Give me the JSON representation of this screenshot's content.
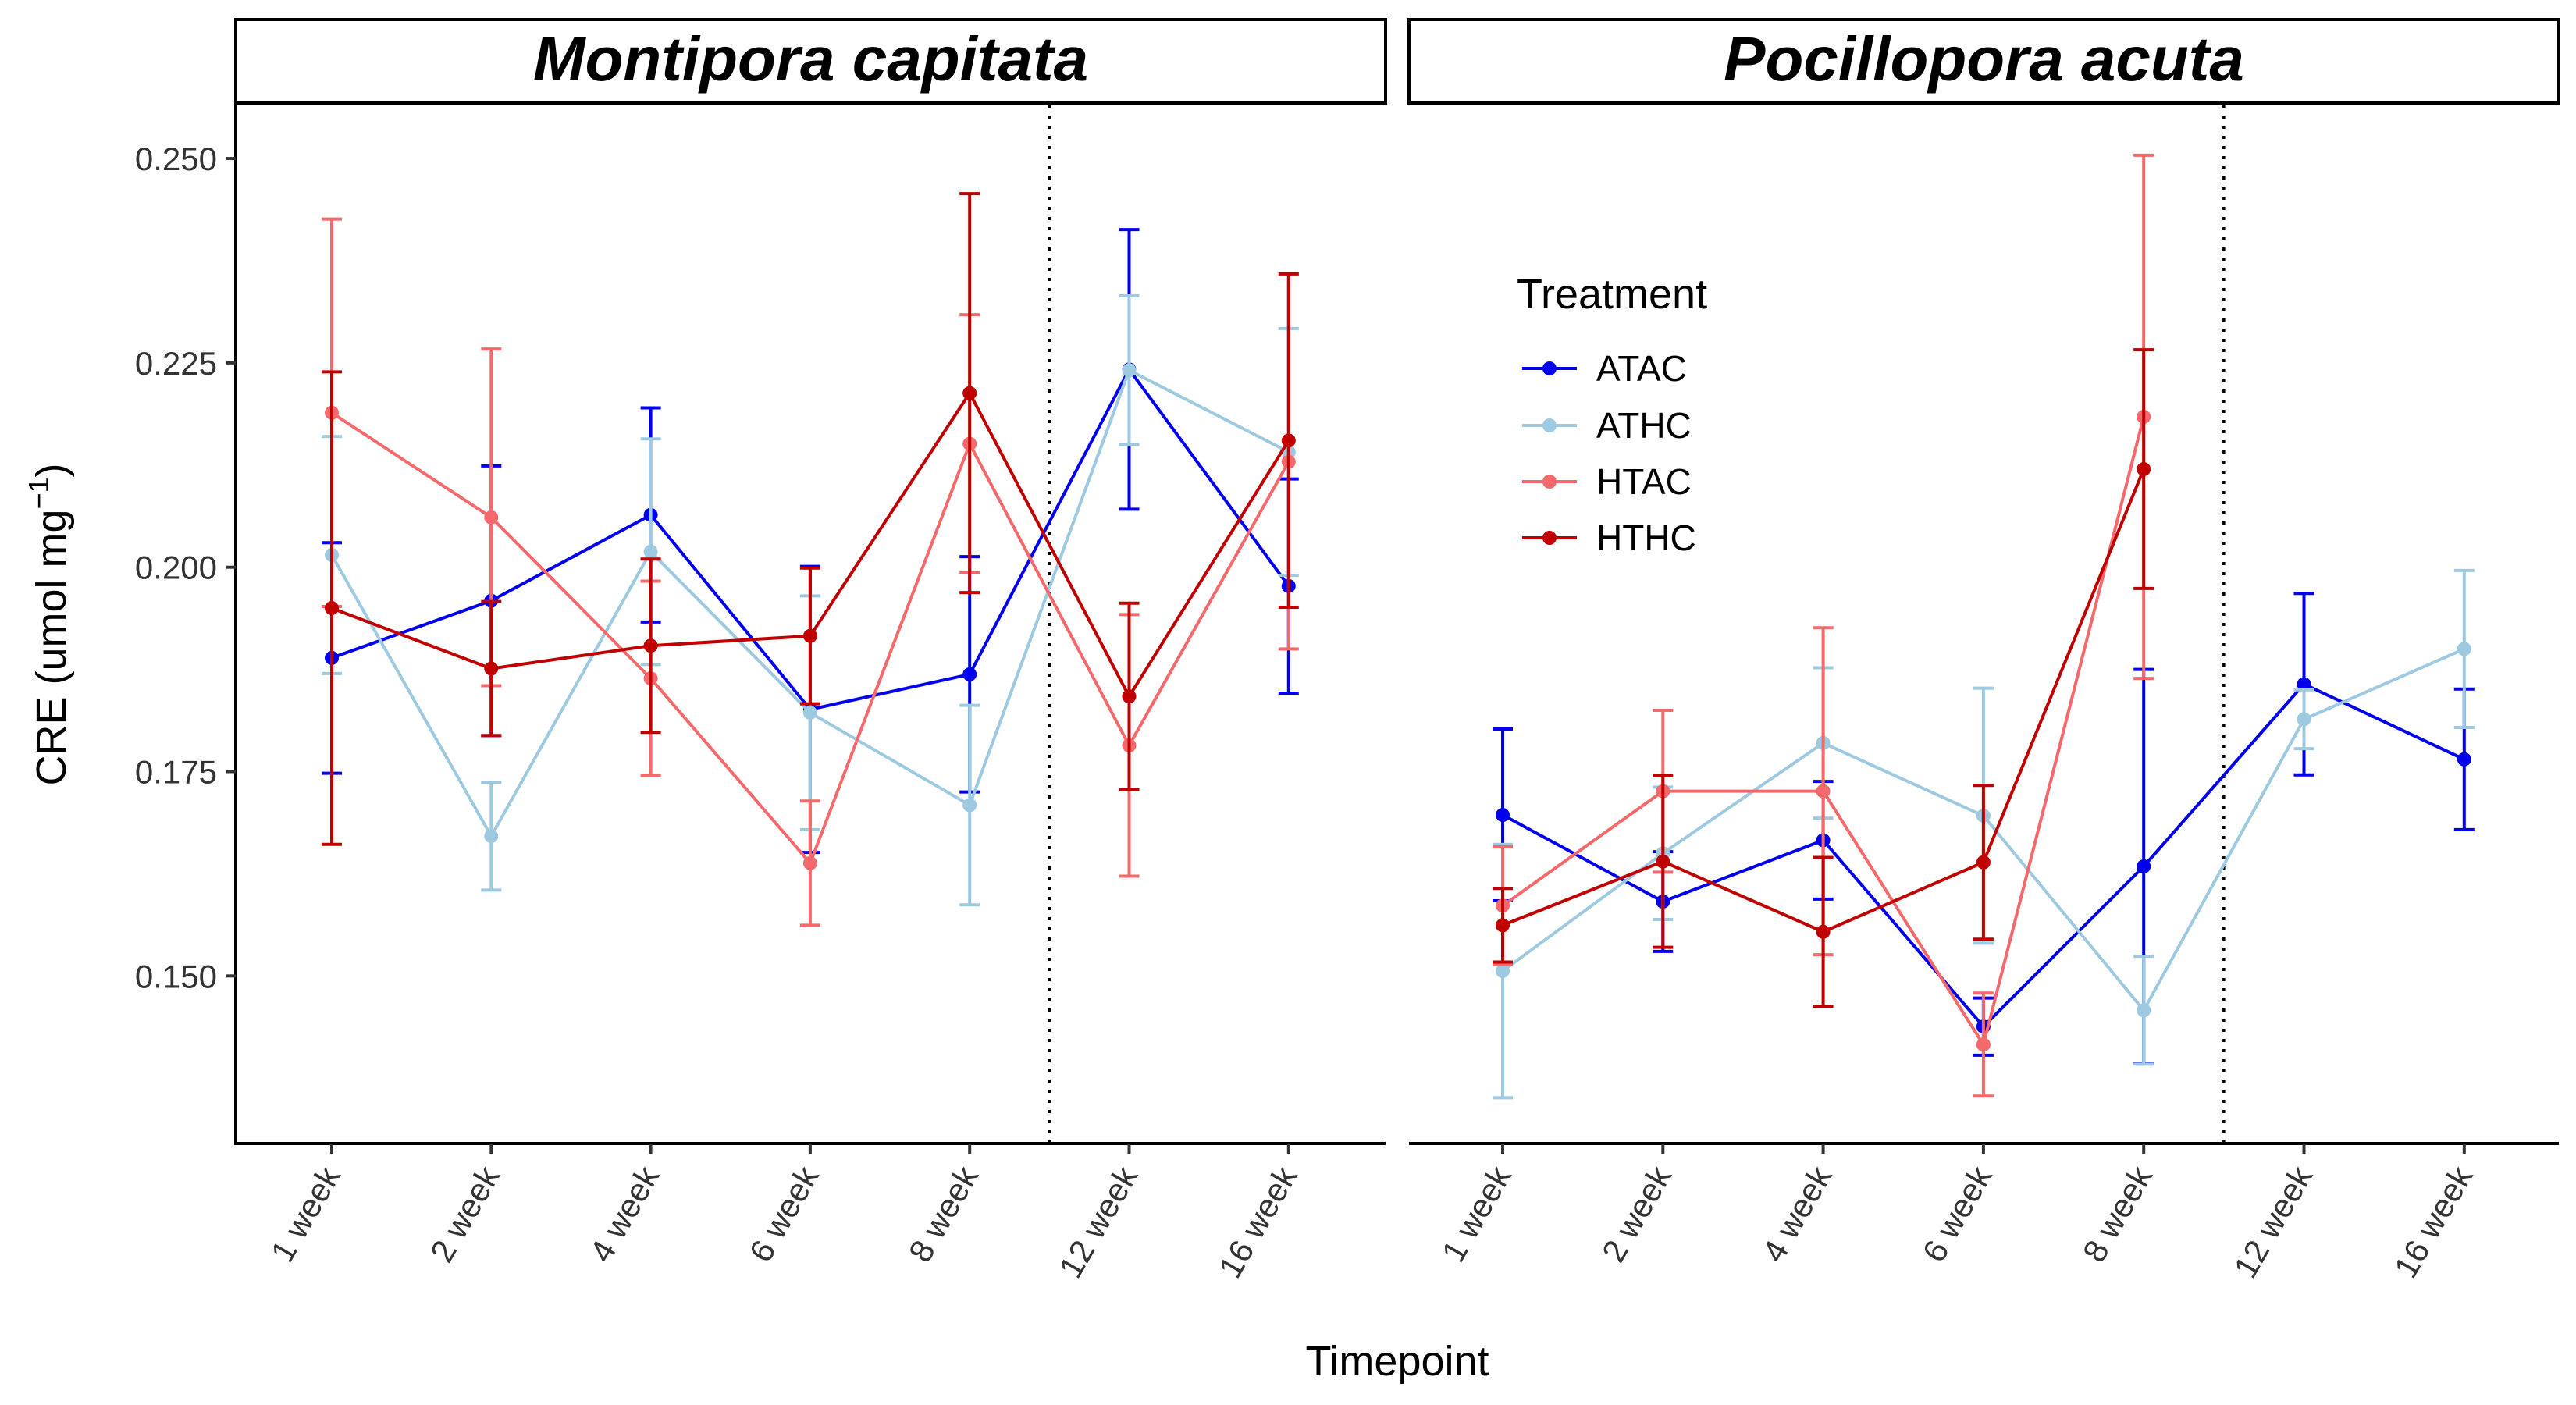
{
  "chart_data": {
    "type": "line",
    "panels": [
      {
        "title": "Montipora capitata",
        "series": [
          {
            "name": "ATAC",
            "values": [
              0.1889,
              0.1959,
              0.2064,
              0.1826,
              0.1869,
              0.2242,
              0.1977
            ],
            "errors": [
              0.0141,
              0.0165,
              0.0131,
              0.0175,
              0.0144,
              0.0171,
              0.0131
            ]
          },
          {
            "name": "ATHC",
            "values": [
              0.2015,
              0.1671,
              0.2019,
              0.1822,
              0.1709,
              0.2241,
              0.2141
            ],
            "errors": [
              0.0145,
              0.0066,
              0.0138,
              0.0143,
              0.0122,
              0.0091,
              0.0151
            ]
          },
          {
            "name": "HTAC",
            "values": [
              0.2189,
              0.2061,
              0.1864,
              0.1638,
              0.2151,
              0.1782,
              0.2129
            ],
            "errors": [
              0.0237,
              0.0206,
              0.0119,
              0.0076,
              0.0158,
              0.016,
              0.0229
            ]
          },
          {
            "name": "HTHC",
            "values": [
              0.195,
              0.1876,
              0.1904,
              0.1916,
              0.2213,
              0.1842,
              0.2155
            ],
            "errors": [
              0.0289,
              0.0082,
              0.0106,
              0.0083,
              0.0244,
              0.0114,
              0.0204
            ]
          }
        ]
      },
      {
        "title": "Pocillopora acuta",
        "series": [
          {
            "name": "ATAC",
            "values": [
              0.1697,
              0.1591,
              0.1666,
              0.1438,
              0.1634,
              0.1857,
              0.1765
            ],
            "errors": [
              0.0105,
              0.0061,
              0.0072,
              0.0035,
              0.0241,
              0.0111,
              0.0086
            ]
          },
          {
            "name": "ATHC",
            "values": [
              0.1506,
              0.165,
              0.1785,
              0.1696,
              0.1458,
              0.1814,
              0.19
            ],
            "errors": [
              0.0155,
              0.0081,
              0.0092,
              0.0156,
              0.0066,
              0.0036,
              0.0096
            ]
          },
          {
            "name": "HTAC",
            "values": [
              0.1586,
              0.1726,
              0.1726,
              0.1416,
              0.2184,
              null,
              null
            ],
            "errors": [
              0.0072,
              0.0099,
              0.02,
              0.0063,
              0.032,
              null,
              null
            ]
          },
          {
            "name": "HTHC",
            "values": [
              0.1562,
              0.164,
              0.1554,
              0.1639,
              0.212,
              null,
              null
            ],
            "errors": [
              0.0045,
              0.0105,
              0.0091,
              0.0094,
              0.0146,
              null,
              null
            ]
          }
        ]
      }
    ],
    "categories": [
      "1 week",
      "2 week",
      "4 week",
      "6 week",
      "8 week",
      "12 week",
      "16 week"
    ],
    "xlabel": "Timepoint",
    "ylabel_main": "CRE (umol mg",
    "ylabel_sup": "−1",
    "ylabel_close": ")",
    "ylim": [
      0.1295,
      0.2565
    ],
    "yticks": [
      "0.150",
      "0.175",
      "0.200",
      "0.225",
      "0.250"
    ],
    "ytick_values": [
      0.15,
      0.175,
      0.2,
      0.225,
      0.25
    ],
    "divider_after_category": "8 week",
    "legend": {
      "title": "Treatment",
      "placement": "inside-right-panel-top-left",
      "entries": [
        "ATAC",
        "ATHC",
        "HTAC",
        "HTHC"
      ]
    },
    "colors": {
      "ATAC": "#0000EE",
      "ATHC": "#9ECAE1",
      "HTAC": "#F4696B",
      "HTHC": "#C00000"
    },
    "grid": false
  }
}
